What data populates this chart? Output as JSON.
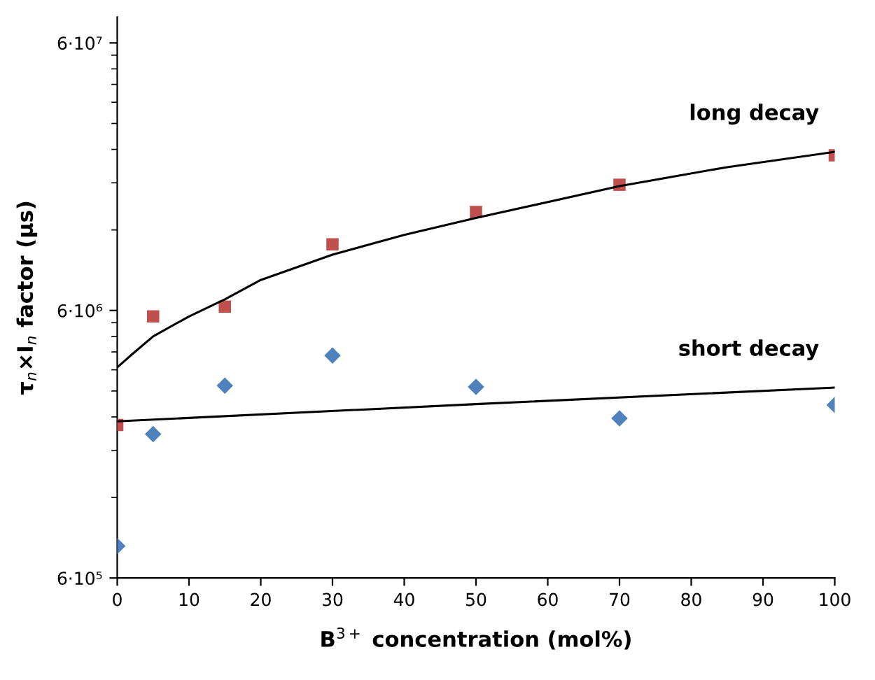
{
  "chart_data": {
    "type": "scatter",
    "xlabel": "B$^{3+}$ concentration (mol%)",
    "ylabel": "τ$_{n}$×I$_{n}$ factor (μs)",
    "x": [
      0,
      5,
      15,
      30,
      50,
      70,
      100
    ],
    "series": [
      {
        "marker": "square",
        "color": "#c0504d",
        "values": [
          2240000,
          5700000,
          6200000,
          10600000,
          14000000,
          17700000,
          22800000
        ]
      },
      {
        "marker": "diamond",
        "color": "#4f81bd",
        "values": [
          790000,
          2070000,
          3140000,
          4070000,
          3110000,
          2370000,
          2660000
        ]
      },
      {
        "type": "line",
        "name": "long decay",
        "marker": "none",
        "color": "#000000",
        "x": [
          0,
          2,
          5,
          10,
          15,
          20,
          30,
          40,
          50,
          70,
          85,
          100
        ],
        "values": [
          3680000,
          4100000,
          4800000,
          5700000,
          6600000,
          7800000,
          9700000,
          11500000,
          13300000,
          17500000,
          20600000,
          23500000
        ]
      },
      {
        "type": "line",
        "name": "short decay",
        "marker": "none",
        "color": "#000000",
        "x": [
          0,
          50,
          100
        ],
        "values": [
          2310000,
          2680000,
          3090000
        ]
      }
    ],
    "log": "y",
    "xlim": [
      0,
      100
    ],
    "xticks": [
      0,
      10,
      20,
      30,
      40,
      50,
      60,
      70,
      80,
      90,
      100
    ],
    "ylim": [
      600000,
      75000000
    ],
    "yticks": [
      {
        "value": 600000,
        "label": "6·10⁵"
      },
      {
        "value": 6000000,
        "label": "6·10⁶"
      },
      {
        "value": 60000000,
        "label": "6·10⁷"
      }
    ],
    "grid": false,
    "legend": false
  }
}
